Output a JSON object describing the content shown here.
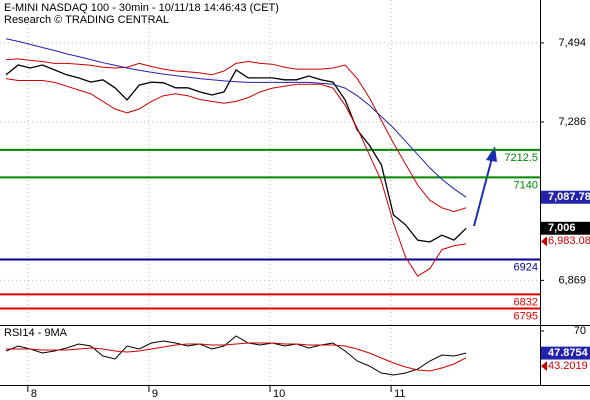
{
  "chart_data": {
    "type": "line",
    "title": "E-MINI NASDAQ 100 - 30min - 10/11/18 14:46:43 (CET)",
    "subtitle": "Research © TRADING CENTRAL",
    "x": [
      7.82,
      7.92,
      8.02,
      8.12,
      8.22,
      8.32,
      8.42,
      8.52,
      8.62,
      8.72,
      8.82,
      8.92,
      9.02,
      9.12,
      9.22,
      9.32,
      9.42,
      9.52,
      9.62,
      9.72,
      9.82,
      9.92,
      10.02,
      10.12,
      10.22,
      10.32,
      10.42,
      10.52,
      10.62,
      10.72,
      10.82,
      10.92,
      11.02,
      11.12,
      11.22,
      11.32,
      11.42,
      11.52,
      11.62
    ],
    "xlim": [
      7.77,
      12.23
    ],
    "xticks": [
      8,
      9,
      10,
      11
    ],
    "ylim": [
      6751.5,
      7607
    ],
    "yticks": [
      {
        "value": 7494,
        "label": "7,494"
      },
      {
        "value": 7286,
        "label": "7,286"
      },
      {
        "value": 6869,
        "label": "6,869"
      }
    ],
    "grid": true,
    "series": [
      {
        "color": "#000000",
        "values": [
          7410,
          7436,
          7428,
          7436,
          7423,
          7410,
          7402,
          7391,
          7397,
          7376,
          7344,
          7383,
          7391,
          7389,
          7376,
          7376,
          7365,
          7357,
          7365,
          7423,
          7402,
          7402,
          7402,
          7397,
          7397,
          7407,
          7397,
          7391,
          7344,
          7265,
          7225,
          7173,
          7041,
          7015,
          6975,
          6970,
          6988,
          6975,
          7006
        ]
      },
      {
        "color": "#cc0000",
        "values": [
          7450,
          7452,
          7448,
          7445,
          7440,
          7440,
          7438,
          7435,
          7430,
          7428,
          7430,
          7440,
          7432,
          7425,
          7420,
          7418,
          7415,
          7410,
          7420,
          7440,
          7445,
          7440,
          7438,
          7430,
          7425,
          7425,
          7425,
          7428,
          7436,
          7400,
          7350,
          7290,
          7230,
          7175,
          7120,
          7080,
          7060,
          7050,
          7060
        ]
      },
      {
        "color": "#cc0000",
        "values": [
          7400,
          7395,
          7395,
          7395,
          7390,
          7380,
          7370,
          7360,
          7340,
          7320,
          7310,
          7320,
          7340,
          7355,
          7360,
          7355,
          7345,
          7340,
          7335,
          7340,
          7350,
          7365,
          7375,
          7380,
          7385,
          7385,
          7385,
          7375,
          7330,
          7270,
          7200,
          7130,
          7020,
          6930,
          6880,
          6900,
          6950,
          6960,
          6965
        ]
      },
      {
        "color": "#2222aa",
        "values": [
          7505,
          7498,
          7490,
          7482,
          7474,
          7465,
          7458,
          7450,
          7442,
          7435,
          7428,
          7422,
          7417,
          7412,
          7408,
          7404,
          7400,
          7397,
          7394,
          7392,
          7390,
          7390,
          7390,
          7390,
          7390,
          7390,
          7388,
          7385,
          7375,
          7355,
          7330,
          7300,
          7270,
          7235,
          7200,
          7165,
          7135,
          7110,
          7088
        ]
      }
    ],
    "levels": [
      {
        "value": 7212.5,
        "color": "#008800"
      },
      {
        "value": 7140,
        "color": "#008800"
      },
      {
        "value": 6924,
        "color": "#000099"
      },
      {
        "value": 6832,
        "color": "#dd0000"
      },
      {
        "value": 6795,
        "color": "#dd0000"
      }
    ],
    "price_tags": [
      {
        "value": 7087.78,
        "label": "7,087.78",
        "color": "#2222aa"
      },
      {
        "value": 7006,
        "label": "7,006",
        "color": "#000000"
      },
      {
        "value": 6983.08,
        "label": "6,983.08",
        "color": "#cc0000"
      }
    ],
    "rsi": {
      "title": "RSI14 - 9MA",
      "ylim": [
        16,
        76
      ],
      "yticks": [
        70
      ],
      "series": [
        {
          "color": "#000000",
          "values": [
            50,
            55,
            52,
            48,
            50,
            53,
            57,
            55,
            45,
            42,
            55,
            52,
            58,
            60,
            58,
            55,
            57,
            52,
            55,
            65,
            58,
            56,
            58,
            55,
            57,
            53,
            56,
            58,
            50,
            40,
            35,
            28,
            26,
            28,
            32,
            40,
            46,
            45,
            47.8754
          ]
        },
        {
          "color": "#cc0000",
          "values": [
            52,
            52,
            52,
            51,
            51,
            51,
            52,
            53,
            52,
            50,
            49,
            50,
            52,
            54,
            56,
            57,
            57,
            56,
            56,
            57,
            58,
            58,
            58,
            57,
            57,
            56,
            56,
            56,
            55,
            52,
            48,
            43,
            38,
            34,
            31,
            30,
            33,
            37,
            43.2019
          ]
        }
      ],
      "price_tags": [
        {
          "value": 47.8754,
          "color": "#2222aa"
        },
        {
          "value": 43.2019,
          "color": "#cc0000"
        }
      ]
    }
  }
}
